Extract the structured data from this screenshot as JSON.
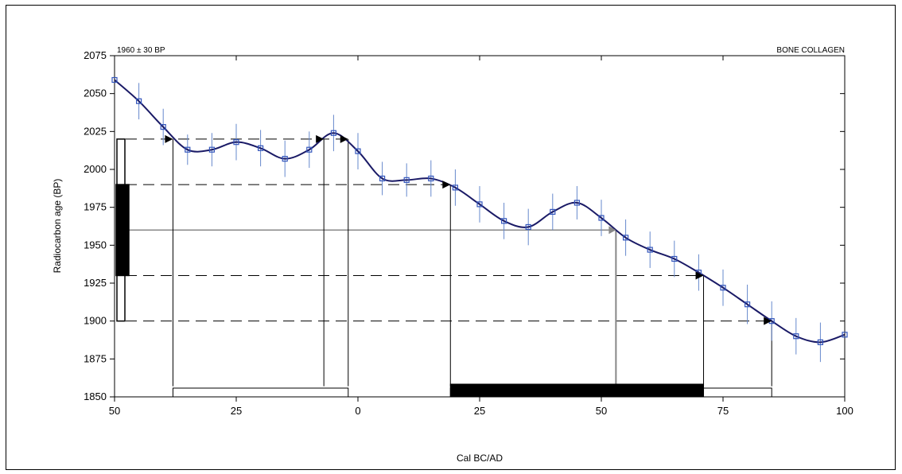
{
  "chart_data": {
    "type": "line",
    "corner_left": "1960 ± 30 BP",
    "corner_right": "BONE COLLAGEN",
    "xlabel": "Cal BC/AD",
    "ylabel": "Radiocarbon age (BP)",
    "xlim": [
      -50,
      100
    ],
    "ylim": [
      1850,
      2075
    ],
    "x_ticks": [
      -50,
      -25,
      0,
      25,
      50,
      75,
      100
    ],
    "x_tick_labels": [
      "50",
      "25",
      "0",
      "25",
      "50",
      "75",
      "100"
    ],
    "y_ticks": [
      1850,
      1875,
      1900,
      1925,
      1950,
      1975,
      2000,
      2025,
      2050,
      2075
    ],
    "y_tick_labels": [
      "1850",
      "1875",
      "1900",
      "1925",
      "1950",
      "1975",
      "2000",
      "2025",
      "2050",
      "2075"
    ],
    "grid": false,
    "measurement": {
      "age": 1960,
      "error": 30
    },
    "calibration_points": [
      {
        "x": -50,
        "y": 2059,
        "err": 0
      },
      {
        "x": -45,
        "y": 2045,
        "err": 12
      },
      {
        "x": -40,
        "y": 2028,
        "err": 12
      },
      {
        "x": -35,
        "y": 2013,
        "err": 10
      },
      {
        "x": -30,
        "y": 2013,
        "err": 11
      },
      {
        "x": -25,
        "y": 2018,
        "err": 12
      },
      {
        "x": -20,
        "y": 2014,
        "err": 12
      },
      {
        "x": -15,
        "y": 2007,
        "err": 12
      },
      {
        "x": -10,
        "y": 2013,
        "err": 12
      },
      {
        "x": -5,
        "y": 2024,
        "err": 12
      },
      {
        "x": 0,
        "y": 2012,
        "err": 12
      },
      {
        "x": 5,
        "y": 1994,
        "err": 11
      },
      {
        "x": 10,
        "y": 1993,
        "err": 11
      },
      {
        "x": 15,
        "y": 1994,
        "err": 12
      },
      {
        "x": 20,
        "y": 1988,
        "err": 12
      },
      {
        "x": 25,
        "y": 1977,
        "err": 12
      },
      {
        "x": 30,
        "y": 1966,
        "err": 12
      },
      {
        "x": 35,
        "y": 1962,
        "err": 12
      },
      {
        "x": 40,
        "y": 1972,
        "err": 12
      },
      {
        "x": 45,
        "y": 1978,
        "err": 11
      },
      {
        "x": 50,
        "y": 1968,
        "err": 12
      },
      {
        "x": 55,
        "y": 1955,
        "err": 12
      },
      {
        "x": 60,
        "y": 1947,
        "err": 12
      },
      {
        "x": 65,
        "y": 1941,
        "err": 12
      },
      {
        "x": 70,
        "y": 1932,
        "err": 12
      },
      {
        "x": 75,
        "y": 1922,
        "err": 12
      },
      {
        "x": 80,
        "y": 1911,
        "err": 13
      },
      {
        "x": 85,
        "y": 1900,
        "err": 13
      },
      {
        "x": 90,
        "y": 1890,
        "err": 12
      },
      {
        "x": 95,
        "y": 1886,
        "err": 13
      },
      {
        "x": 100,
        "y": 1891,
        "err": 0
      }
    ],
    "curve_color": "#1a1a66",
    "point_color": "#3355bb",
    "errorbar_color": "#6688cc",
    "age_bars": [
      {
        "sigma": 2,
        "from": 1900,
        "to": 2020,
        "filled": false
      },
      {
        "sigma": 1,
        "from": 1930,
        "to": 1990,
        "filled": true
      }
    ],
    "dashed_levels": [
      2020,
      1990,
      1930,
      1900
    ],
    "center_level": 1960,
    "intercept_x": 53,
    "arrows": [
      {
        "level": 2020,
        "x": -38
      },
      {
        "level": 2020,
        "x": -7
      },
      {
        "level": 2020,
        "x": -2
      },
      {
        "level": 1990,
        "x": 19
      },
      {
        "level": 1930,
        "x": 71
      },
      {
        "level": 1900,
        "x": 85
      }
    ],
    "drop_lines": [
      -38,
      -7,
      -2,
      19,
      71,
      85
    ],
    "cal_ranges": [
      {
        "sigma": 2,
        "from": -38,
        "to": -2,
        "filled": false
      },
      {
        "sigma": 2,
        "from": 19,
        "to": 85,
        "filled": false
      },
      {
        "sigma": 1,
        "from": 19,
        "to": 71,
        "filled": true
      }
    ]
  }
}
